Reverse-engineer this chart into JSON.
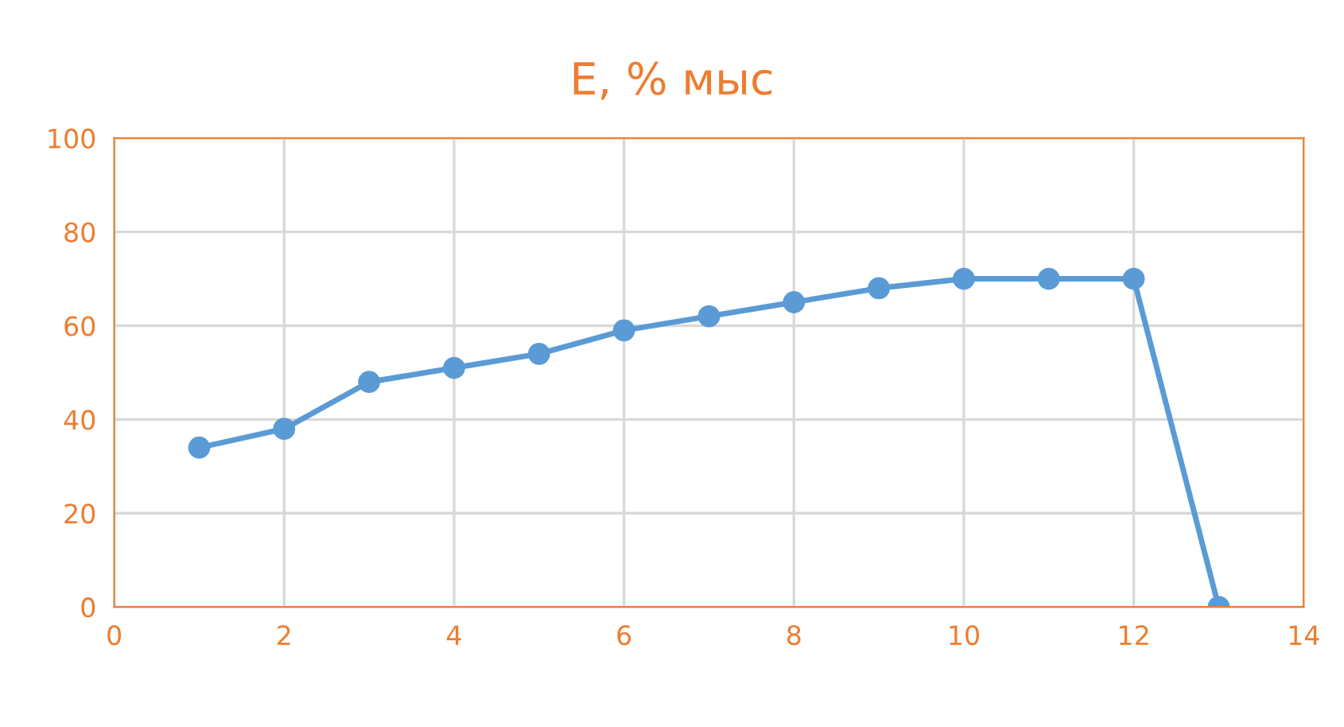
{
  "chart_data": {
    "type": "line",
    "title": "E, % мыс",
    "x": [
      1,
      2,
      3,
      4,
      5,
      6,
      7,
      8,
      9,
      10,
      11,
      12,
      13
    ],
    "series": [
      {
        "color": "#5b9bd5",
        "values": [
          34,
          38,
          48,
          51,
          54,
          59,
          62,
          65,
          68,
          70,
          70,
          70,
          0
        ]
      }
    ],
    "xlim": [
      0,
      14
    ],
    "xticks": [
      0,
      2,
      4,
      6,
      8,
      10,
      12,
      14
    ],
    "ylim": [
      0,
      100
    ],
    "yticks": [
      0,
      20,
      40,
      60,
      80,
      100
    ],
    "grid": true,
    "marker": "circle",
    "line_style": "solid",
    "legend": false
  }
}
